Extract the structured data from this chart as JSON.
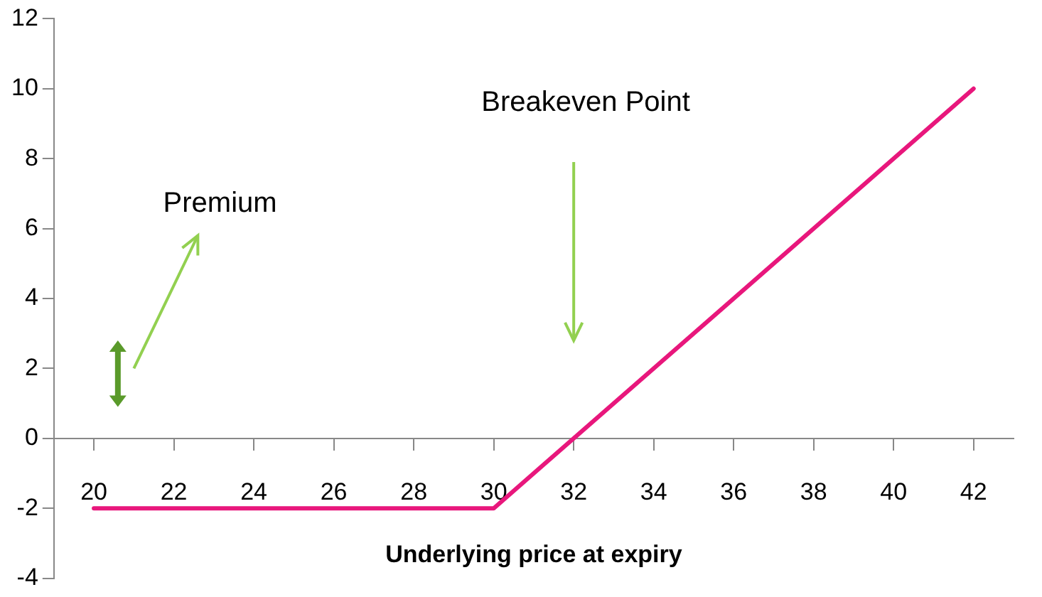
{
  "chart_data": {
    "type": "line",
    "xlabel": "Underlying price at expiry",
    "x": [
      20,
      30,
      42
    ],
    "series": [
      {
        "color": "#e8177c",
        "values": [
          -2,
          -2,
          10
        ]
      }
    ],
    "xlim": [
      19,
      43
    ],
    "xticks": [
      20,
      22,
      24,
      26,
      28,
      30,
      32,
      34,
      36,
      38,
      40,
      42
    ],
    "ylim": [
      -4,
      12
    ],
    "yticks": [
      -4,
      -2,
      0,
      2,
      4,
      6,
      8,
      10,
      12
    ],
    "grid": false,
    "legend": false,
    "marker": "none",
    "line_style": "solid",
    "annotations": [
      "Premium",
      "Breakeven Point"
    ]
  }
}
